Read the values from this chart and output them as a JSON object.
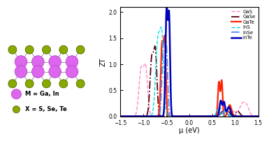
{
  "xlim": [
    -1.5,
    1.5
  ],
  "ylim": [
    0,
    2.1
  ],
  "xlabel": "μ (eV)",
  "ylabel": "ZT",
  "xticks": [
    -1.5,
    -1.0,
    -0.5,
    0.0,
    0.5,
    1.0,
    1.5
  ],
  "yticks": [
    0.0,
    0.5,
    1.0,
    1.5,
    2.0
  ],
  "legend_labels": [
    "GaS",
    "GaSe",
    "GaTe",
    "InS",
    "InSe",
    "InTe"
  ],
  "colors": {
    "GaS": "#FF88CC",
    "GaSe": "#5B0010",
    "GaTe": "#FF2200",
    "InS": "#00DDDD",
    "InSe": "#5588EE",
    "InTe": "#0000BB"
  },
  "linestyles": {
    "GaS": "dashed",
    "GaSe": "dashdot",
    "GaTe": "solid",
    "InS": "dashed",
    "InSe": "dashdot",
    "InTe": "solid"
  },
  "m_label": "M = Ga, In",
  "x_label": "X = S, Se, Te",
  "m_color": "#DD66EE",
  "x_color": "#88AA00",
  "m_edge": "#BB44CC",
  "x_edge": "#556600",
  "bond_color": "#999999"
}
